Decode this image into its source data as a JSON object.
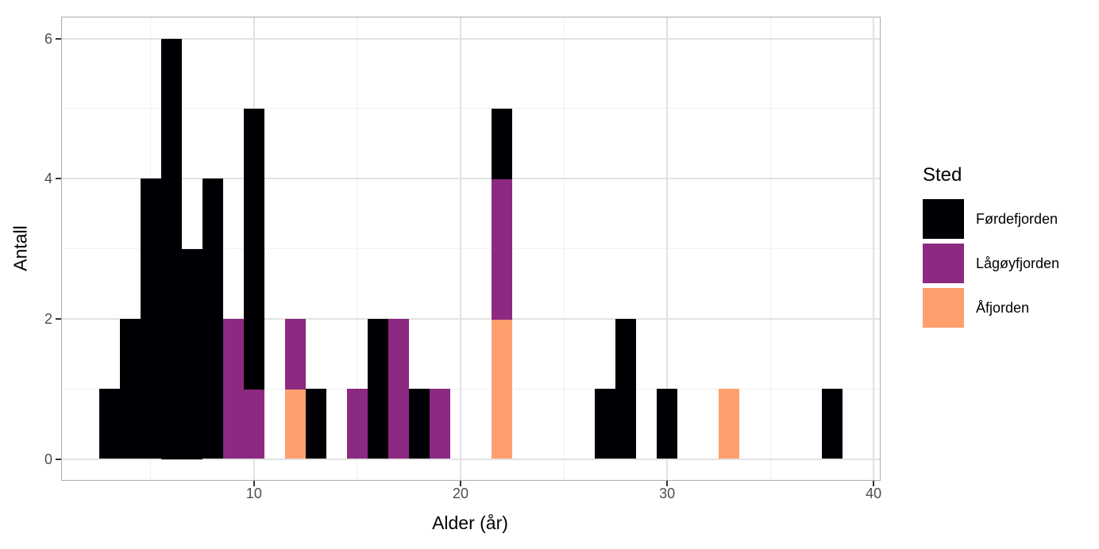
{
  "chart_data": {
    "type": "histogram",
    "stacked": true,
    "binwidth": 1,
    "x_label": "Alder (år)",
    "y_label": "Antall",
    "x_ticks": [
      10,
      20,
      30,
      40
    ],
    "y_ticks": [
      0,
      2,
      4,
      6
    ],
    "x_minor_ticks": [
      5,
      15,
      25,
      35
    ],
    "y_minor_ticks": [
      1,
      3,
      5
    ],
    "xlim": [
      0.7,
      40.3
    ],
    "ylim": [
      -0.3,
      6.3
    ],
    "grid": true,
    "legend_position": "right",
    "legend": {
      "title": "Sted",
      "entries": [
        {
          "key": "fordefjorden",
          "label": "Førdefjorden",
          "color": "#000004"
        },
        {
          "key": "lagoyfjorden",
          "label": "Lågøyfjorden",
          "color": "#8C2981"
        },
        {
          "key": "afjorden",
          "label": "Åfjorden",
          "color": "#FE9F6D"
        }
      ]
    },
    "stack_order_bottom_to_top": [
      "afjorden",
      "lagoyfjorden",
      "fordefjorden"
    ],
    "bins": [
      {
        "center": 3,
        "counts": {
          "fordefjorden": 1
        }
      },
      {
        "center": 4,
        "counts": {
          "fordefjorden": 2
        }
      },
      {
        "center": 5,
        "counts": {
          "fordefjorden": 4
        }
      },
      {
        "center": 6,
        "counts": {
          "fordefjorden": 6
        }
      },
      {
        "center": 7,
        "counts": {
          "fordefjorden": 3
        }
      },
      {
        "center": 8,
        "counts": {
          "fordefjorden": 4
        }
      },
      {
        "center": 9,
        "counts": {
          "lagoyfjorden": 2
        }
      },
      {
        "center": 10,
        "counts": {
          "fordefjorden": 4,
          "lagoyfjorden": 1
        }
      },
      {
        "center": 12,
        "counts": {
          "lagoyfjorden": 1,
          "afjorden": 1
        }
      },
      {
        "center": 13,
        "counts": {
          "fordefjorden": 1
        }
      },
      {
        "center": 15,
        "counts": {
          "lagoyfjorden": 1
        }
      },
      {
        "center": 16,
        "counts": {
          "fordefjorden": 2
        }
      },
      {
        "center": 17,
        "counts": {
          "lagoyfjorden": 2
        }
      },
      {
        "center": 18,
        "counts": {
          "fordefjorden": 1
        }
      },
      {
        "center": 19,
        "counts": {
          "lagoyfjorden": 1
        }
      },
      {
        "center": 22,
        "counts": {
          "fordefjorden": 1,
          "lagoyfjorden": 2,
          "afjorden": 2
        }
      },
      {
        "center": 27,
        "counts": {
          "fordefjorden": 1
        }
      },
      {
        "center": 28,
        "counts": {
          "fordefjorden": 2
        }
      },
      {
        "center": 30,
        "counts": {
          "fordefjorden": 1
        }
      },
      {
        "center": 33,
        "counts": {
          "afjorden": 1
        }
      },
      {
        "center": 38,
        "counts": {
          "fordefjorden": 1
        }
      }
    ],
    "colors": {
      "grid_major": "#E2E2E2",
      "grid_minor": "#EFEFEF",
      "panel_border": "#ACACAC",
      "tick_mark": "#333333",
      "tick_label": "#4D4D4D",
      "axis_title": "#000000"
    }
  }
}
